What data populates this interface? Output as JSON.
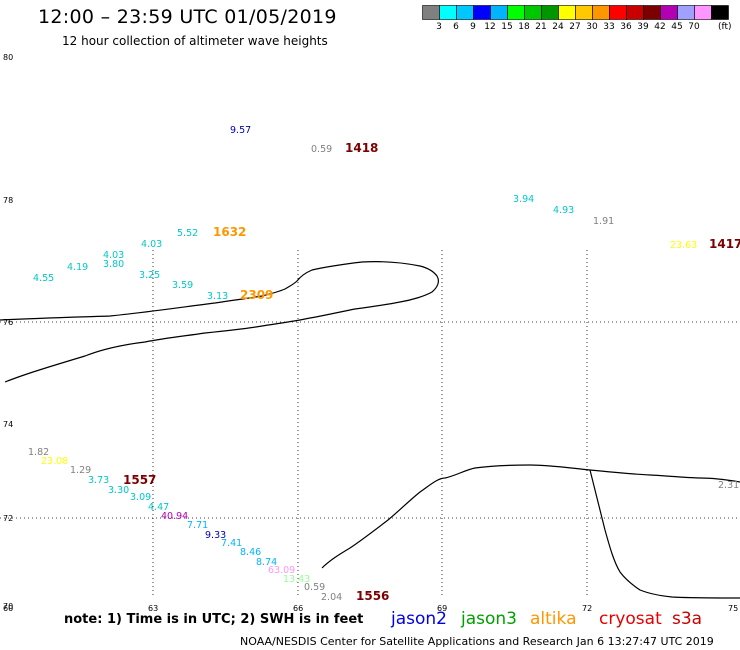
{
  "header": {
    "title": "12:00 – 23:59 UTC 01/05/2019",
    "subtitle": "12 hour collection of altimeter wave heights"
  },
  "scale": {
    "colors": [
      "#808080",
      "#00ffff",
      "#00c8ff",
      "#0000ff",
      "#00b4ff",
      "#00ff00",
      "#00c800",
      "#009600",
      "#ffff00",
      "#ffc800",
      "#ff9600",
      "#ff0000",
      "#c80000",
      "#7d0000",
      "#b400b4",
      "#a0a0ff",
      "#ff96ff",
      "#000000"
    ],
    "ticks": [
      "3",
      "6",
      "9",
      "12",
      "15",
      "18",
      "21",
      "24",
      "27",
      "30",
      "33",
      "36",
      "39",
      "42",
      "45",
      "70"
    ],
    "unit": "(ft)"
  },
  "axes": {
    "lat_labels": [
      "80",
      "78",
      "76",
      "74",
      "72",
      "70"
    ],
    "lon_labels": [
      "60",
      "63",
      "66",
      "69",
      "72",
      "75"
    ]
  },
  "observations": [
    {
      "text": "9.57",
      "color": "#0000b4"
    },
    {
      "text": "0.59",
      "color": "#808080"
    },
    {
      "text": "1418",
      "color": "#7d0000"
    },
    {
      "text": "3.94",
      "color": "#00c8c8"
    },
    {
      "text": "4.93",
      "color": "#00c8c8"
    },
    {
      "text": "1.91",
      "color": "#808080"
    },
    {
      "text": "23.63",
      "color": "#ffff00"
    },
    {
      "text": "1417",
      "color": "#7d0000"
    },
    {
      "text": "4.03",
      "color": "#00c8c8"
    },
    {
      "text": "5.52",
      "color": "#00c8c8"
    },
    {
      "text": "1632",
      "color": "#ff9600"
    },
    {
      "text": "4.03",
      "color": "#00c8c8"
    },
    {
      "text": "3.80",
      "color": "#00c8c8"
    },
    {
      "text": "4.19",
      "color": "#00c8c8"
    },
    {
      "text": "4.55",
      "color": "#00c8c8"
    },
    {
      "text": "3.25",
      "color": "#00c8c8"
    },
    {
      "text": "3.59",
      "color": "#00c8c8"
    },
    {
      "text": "3.13",
      "color": "#00c8c8"
    },
    {
      "text": "2309",
      "color": "#ff9600"
    },
    {
      "text": "1.82",
      "color": "#808080"
    },
    {
      "text": "23.08",
      "color": "#ffff00"
    },
    {
      "text": "1.29",
      "color": "#808080"
    },
    {
      "text": "3.73",
      "color": "#00c8c8"
    },
    {
      "text": "1557",
      "color": "#7d0000"
    },
    {
      "text": "3.30",
      "color": "#00c8c8"
    },
    {
      "text": "3.09",
      "color": "#00c8c8"
    },
    {
      "text": "4.47",
      "color": "#00c8c8"
    },
    {
      "text": "40.94",
      "color": "#b400b4"
    },
    {
      "text": "7.71",
      "color": "#00b4ff"
    },
    {
      "text": "9.33",
      "color": "#0000b4"
    },
    {
      "text": "7.41",
      "color": "#00b4ff"
    },
    {
      "text": "8.46",
      "color": "#00b4ff"
    },
    {
      "text": "8.74",
      "color": "#00b4ff"
    },
    {
      "text": "63.09",
      "color": "#ff96ff"
    },
    {
      "text": "13.43",
      "color": "#96ff96"
    },
    {
      "text": "0.59",
      "color": "#808080"
    },
    {
      "text": "2.04",
      "color": "#808080"
    },
    {
      "text": "1556",
      "color": "#7d0000"
    },
    {
      "text": "2.31",
      "color": "#808080"
    }
  ],
  "footer": {
    "note": "note:  1) Time is in UTC;  2) SWH is in feet",
    "satellites": [
      {
        "name": "jason2",
        "color": "#0000e6"
      },
      {
        "name": "jason3",
        "color": "#00a000"
      },
      {
        "name": "altika",
        "color": "#ff9600"
      },
      {
        "name": "cryosat",
        "color": "#e60000"
      },
      {
        "name": "s3a",
        "color": "#c80000"
      }
    ],
    "credit": "NOAA/NESDIS Center for Satellite Applications and Research    Jan  6 13:27:47 UTC 2019"
  }
}
